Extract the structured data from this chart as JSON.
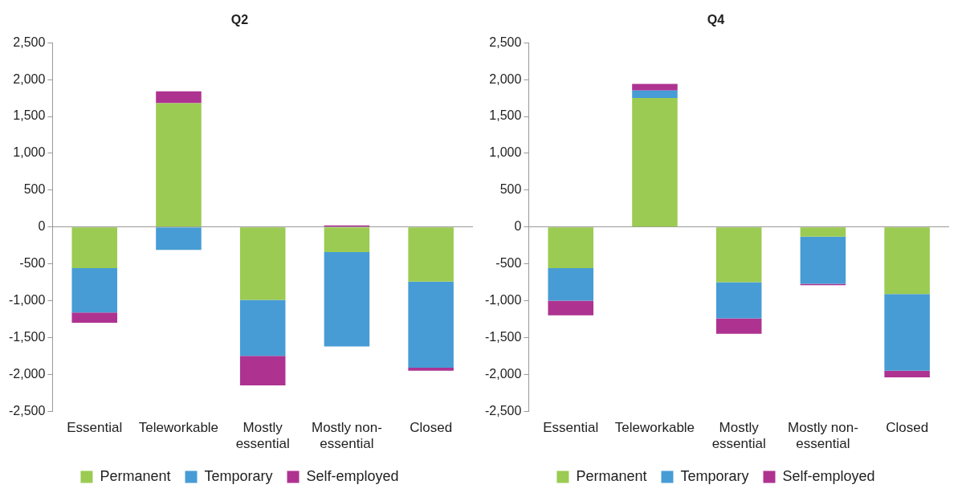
{
  "chart_data": [
    {
      "type": "bar",
      "title": "Q2",
      "stacked": true,
      "categories": [
        "Essential",
        "Teleworkable",
        "Mostly essential",
        "Mostly non-essential",
        "Closed"
      ],
      "ylim": [
        -2500,
        2500
      ],
      "yticks": [
        {
          "value": -2500,
          "label": "-2,500"
        },
        {
          "value": -2000,
          "label": "-2,000"
        },
        {
          "value": -1500,
          "label": "-1,500"
        },
        {
          "value": -1000,
          "label": "-1,000"
        },
        {
          "value": -500,
          "label": "-500"
        },
        {
          "value": 0,
          "label": "0"
        },
        {
          "value": 500,
          "label": "500"
        },
        {
          "value": 1000,
          "label": "1,000"
        },
        {
          "value": 1500,
          "label": "1,500"
        },
        {
          "value": 2000,
          "label": "2,000"
        },
        {
          "value": 2500,
          "label": "2,500"
        }
      ],
      "legend": "bottom",
      "series": [
        {
          "name": "Permanent",
          "color": "#9bcb52",
          "values": [
            -560,
            1680,
            -990,
            -340,
            -740
          ]
        },
        {
          "name": "Temporary",
          "color": "#479cd5",
          "values": [
            -600,
            -310,
            -760,
            -1280,
            -1170
          ]
        },
        {
          "name": "Self-employed",
          "color": "#ae3391",
          "values": [
            -140,
            160,
            -400,
            20,
            -40
          ]
        }
      ]
    },
    {
      "type": "bar",
      "title": "Q4",
      "stacked": true,
      "categories": [
        "Essential",
        "Teleworkable",
        "Mostly essential",
        "Mostly non-essential",
        "Closed"
      ],
      "ylim": [
        -2500,
        2500
      ],
      "yticks": [
        {
          "value": -2500,
          "label": "-2,500"
        },
        {
          "value": -2000,
          "label": "-2,000"
        },
        {
          "value": -1500,
          "label": "-1,500"
        },
        {
          "value": -1000,
          "label": "-1,000"
        },
        {
          "value": -500,
          "label": "-500"
        },
        {
          "value": 0,
          "label": "0"
        },
        {
          "value": 500,
          "label": "500"
        },
        {
          "value": 1000,
          "label": "1,000"
        },
        {
          "value": 1500,
          "label": "1,500"
        },
        {
          "value": 2000,
          "label": "2,000"
        },
        {
          "value": 2500,
          "label": "2,500"
        }
      ],
      "legend": "bottom",
      "series": [
        {
          "name": "Permanent",
          "color": "#9bcb52",
          "values": [
            -560,
            1750,
            -750,
            -130,
            -910
          ]
        },
        {
          "name": "Temporary",
          "color": "#479cd5",
          "values": [
            -440,
            100,
            -490,
            -640,
            -1040
          ]
        },
        {
          "name": "Self-employed",
          "color": "#ae3391",
          "values": [
            -200,
            90,
            -210,
            -20,
            -90
          ]
        }
      ]
    }
  ]
}
